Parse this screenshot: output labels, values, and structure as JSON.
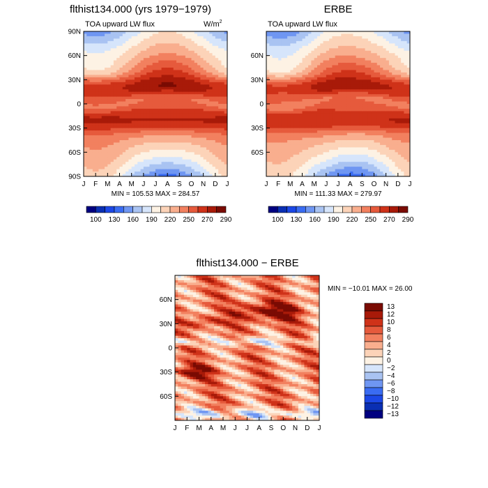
{
  "colors": {
    "ramp": [
      "#000080",
      "#0a2fb3",
      "#1c48e6",
      "#3a6cf2",
      "#6f96f2",
      "#a9c3f2",
      "#d6e5fb",
      "#fdf2e4",
      "#fcd3b8",
      "#f9ae8e",
      "#f2805f",
      "#e65a3c",
      "#cf3219",
      "#a81a09",
      "#7a0b03"
    ],
    "axis": "#000000"
  },
  "chart_data": [
    {
      "type": "heatmap",
      "panel": "model",
      "title": "flthist134.000 (yrs 1979−1979)",
      "subtitle_left": "TOA upward LW flux",
      "units": "W/m",
      "units_exp": "2",
      "x_ticks": [
        "J",
        "F",
        "M",
        "A",
        "M",
        "J",
        "J",
        "A",
        "S",
        "O",
        "N",
        "D",
        "J"
      ],
      "y_ticks": [
        "90N",
        "60N",
        "30N",
        "0",
        "30S",
        "60S",
        "90S"
      ],
      "stats": "MIN = 105.53  MAX = 284.57",
      "colorbar_labels": [
        "100",
        "130",
        "160",
        "190",
        "220",
        "250",
        "270",
        "290"
      ],
      "ylim": [
        -90,
        90
      ]
    },
    {
      "type": "heatmap",
      "panel": "observed",
      "title": "ERBE",
      "subtitle_left": "TOA upward LW flux",
      "x_ticks": [
        "J",
        "F",
        "M",
        "A",
        "M",
        "J",
        "J",
        "A",
        "S",
        "O",
        "N",
        "D",
        "J"
      ],
      "y_ticks": [
        "60N",
        "30N",
        "0",
        "30S",
        "60S"
      ],
      "stats": "MIN = 111.33  MAX = 279.97",
      "colorbar_labels": [
        "100",
        "130",
        "160",
        "190",
        "220",
        "250",
        "270",
        "290"
      ],
      "ylim": [
        -90,
        90
      ]
    },
    {
      "type": "heatmap",
      "panel": "difference",
      "title": "flthist134.000 − ERBE",
      "x_ticks": [
        "J",
        "F",
        "M",
        "A",
        "M",
        "J",
        "J",
        "A",
        "S",
        "O",
        "N",
        "D",
        "J"
      ],
      "y_ticks": [
        "60N",
        "30N",
        "0",
        "30S",
        "60S"
      ],
      "stats": "MIN = −10.01  MAX =  26.00",
      "legend_labels": [
        "13",
        "12",
        "10",
        "8",
        "6",
        "4",
        "2",
        "0",
        "−2",
        "−4",
        "−6",
        "−8",
        "−10",
        "−12",
        "−13"
      ],
      "ylim": [
        -90,
        90
      ]
    }
  ]
}
